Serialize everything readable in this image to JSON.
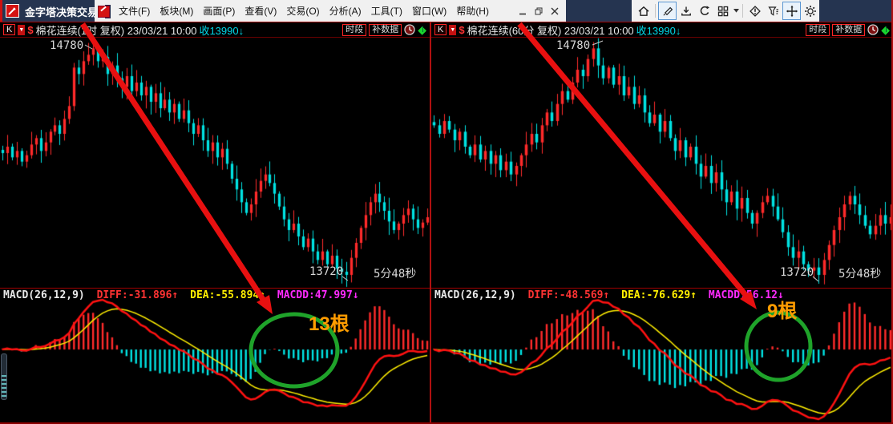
{
  "window": {
    "title": "金字塔决策交易",
    "controls": [
      {
        "name": "minimize-button"
      },
      {
        "name": "restore-button"
      },
      {
        "name": "close-button"
      }
    ]
  },
  "menu": {
    "items": [
      {
        "label": "文件(F)"
      },
      {
        "label": "板块(M)"
      },
      {
        "label": "画面(P)"
      },
      {
        "label": "查看(V)"
      },
      {
        "label": "交易(O)"
      },
      {
        "label": "分析(A)"
      },
      {
        "label": "工具(T)"
      },
      {
        "label": "窗口(W)"
      },
      {
        "label": "帮助(H)"
      }
    ]
  },
  "toolbar": {
    "icons": [
      {
        "name": "home-icon",
        "selected": false
      },
      {
        "name": "pencil-draw-icon",
        "selected": true
      },
      {
        "name": "download-icon",
        "selected": false
      },
      {
        "name": "refresh-icon",
        "selected": false
      },
      {
        "name": "layout-grid-icon",
        "selected": false
      },
      {
        "name": "grid-dropdown-caret-icon",
        "selected": false
      },
      {
        "name": "warning-diamond-icon",
        "selected": false
      },
      {
        "name": "filter-funnel-icon",
        "selected": false
      },
      {
        "name": "pan-move-icon",
        "selected": true
      },
      {
        "name": "settings-gear-icon",
        "selected": false
      }
    ]
  },
  "colors": {
    "up_candle": "#ff2a2a",
    "down_candle": "#00e2e2",
    "dif_line": "#ff1111",
    "dea_line": "#ffee00",
    "diff_text": "#ff3333",
    "dea_text": "#ffee00",
    "macd_text": "#ff2aff",
    "close_text": "#00d8e8",
    "annotation_text": "#ff9c00",
    "annotation_circle": "#1fa32a",
    "annotation_arrow": "#e81010",
    "price_label": "#d8d8d8"
  },
  "panels": [
    {
      "header": {
        "k": "K",
        "caret": "▼",
        "dollar": "$",
        "title": "棉花连续(1时 复权) 23/03/21 10:00",
        "close": "收13990↓",
        "period_button": "时段",
        "fill_button": "补数据"
      },
      "price_labels": {
        "high": "14780",
        "low": "13720",
        "countdown": "5分48秒"
      },
      "macd_header": {
        "name": "MACD(26,12,9)",
        "diff": "DIFF:-31.896↑",
        "dea": "DEA:-55.894↑",
        "macd": "MACDD:47.997↓"
      },
      "annotation": {
        "label": "13根"
      },
      "chart_data": {
        "type": "candlestick+macd",
        "instrument": "棉花连续",
        "interval": "1时",
        "adjust": "复权",
        "datetime": "23/03/21 10:00",
        "last_close": 13990,
        "labeled_high": 14780,
        "labeled_low": 13720,
        "price_axis": {
          "min": 13660,
          "max": 14830
        },
        "macd_params": [
          26,
          12,
          9
        ],
        "indicator_readout": {
          "diff": -31.896,
          "dea": -55.894,
          "macdd": 47.997
        },
        "closes": [
          14290,
          14320,
          14270,
          14300,
          14250,
          14280,
          14330,
          14360,
          14300,
          14340,
          14390,
          14420,
          14380,
          14450,
          14510,
          14690,
          14660,
          14720,
          14750,
          14780,
          14720,
          14740,
          14660,
          14700,
          14640,
          14600,
          14650,
          14580,
          14620,
          14560,
          14600,
          14530,
          14570,
          14500,
          14540,
          14480,
          14520,
          14450,
          14490,
          14430,
          14380,
          14420,
          14350,
          14300,
          14340,
          14270,
          14310,
          14240,
          14170,
          14120,
          14060,
          14010,
          14050,
          14110,
          14160,
          14190,
          14150,
          14100,
          14040,
          13980,
          13930,
          13960,
          13900,
          13850,
          13890,
          13830,
          13790,
          13830,
          13770,
          13810,
          13750,
          13735,
          13720,
          13800,
          13870,
          13940,
          14000,
          14060,
          14100,
          14060,
          14020,
          13970,
          13930,
          13960,
          14000,
          14030,
          13980,
          13940,
          13965,
          13990
        ]
      }
    },
    {
      "header": {
        "k": "K",
        "caret": "▼",
        "dollar": "$",
        "title": "棉花连续(60分 复权) 23/03/21 10:00",
        "close": "收13990↓",
        "period_button": "时段",
        "fill_button": "补数据"
      },
      "price_labels": {
        "high": "14780",
        "low": "13720",
        "countdown": "5分48秒"
      },
      "macd_header": {
        "name": "MACD(26,12,9)",
        "diff": "DIFF:-48.569↑",
        "dea": "DEA:-76.629↑",
        "macd": "MACDD:56.12↓"
      },
      "annotation": {
        "label": "9根"
      },
      "chart_data": {
        "type": "candlestick+macd",
        "instrument": "棉花连续",
        "interval": "60分",
        "adjust": "复权",
        "datetime": "23/03/21 10:00",
        "last_close": 13990,
        "labeled_high": 14780,
        "labeled_low": 13720,
        "price_axis": {
          "min": 13660,
          "max": 14830
        },
        "macd_params": [
          26,
          12,
          9
        ],
        "indicator_readout": {
          "diff": -48.569,
          "dea": -76.629,
          "macdd": 56.12
        },
        "closes": [
          14420,
          14380,
          14440,
          14400,
          14350,
          14390,
          14320,
          14280,
          14330,
          14260,
          14300,
          14240,
          14280,
          14210,
          14250,
          14190,
          14230,
          14280,
          14330,
          14380,
          14340,
          14420,
          14480,
          14440,
          14520,
          14580,
          14540,
          14620,
          14680,
          14650,
          14730,
          14780,
          14700,
          14640,
          14690,
          14610,
          14650,
          14560,
          14600,
          14520,
          14560,
          14480,
          14430,
          14470,
          14390,
          14440,
          14360,
          14300,
          14350,
          14270,
          14320,
          14240,
          14180,
          14230,
          14150,
          14200,
          14120,
          14060,
          14110,
          14030,
          14080,
          14010,
          13960,
          14010,
          14060,
          14090,
          14040,
          13980,
          13920,
          13850,
          13800,
          13830,
          13770,
          13740,
          13755,
          13720,
          13790,
          13860,
          13930,
          13990,
          14050,
          14090,
          14050,
          14000,
          13950,
          13910,
          13950,
          14000,
          13960,
          13990
        ]
      }
    }
  ]
}
